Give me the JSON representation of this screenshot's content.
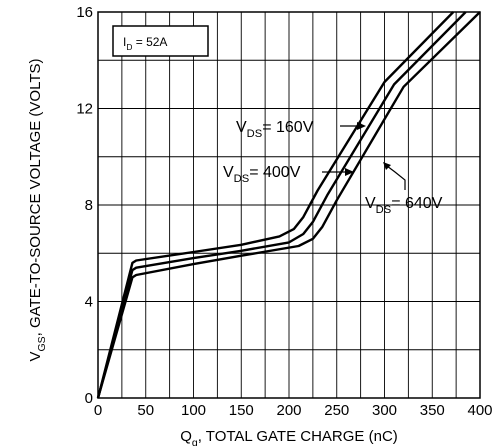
{
  "chart_data": {
    "type": "line",
    "xlabel": "Q",
    "xlabel_sub": "g",
    "xlabel_rest": ", TOTAL GATE CHARGE (nC)",
    "ylabel": "V",
    "ylabel_sub": "GS",
    "ylabel_rest": ", GATE-TO-SOURCE VOLTAGE (VOLTS)",
    "xlim": [
      0,
      400
    ],
    "ylim": [
      0,
      16
    ],
    "xticks": [
      0,
      50,
      100,
      150,
      200,
      250,
      300,
      350,
      400
    ],
    "yticks": [
      0,
      4,
      8,
      12,
      16
    ],
    "grid": "on",
    "condition_label": {
      "base": "I",
      "sub": "D",
      "rest": " = 52A"
    },
    "series": [
      {
        "name": "VDS = 160V",
        "label_base": "V",
        "label_sub": "DS",
        "label_rest": "= 160V",
        "points": [
          [
            0,
            0
          ],
          [
            36,
            5.6
          ],
          [
            40,
            5.7
          ],
          [
            100,
            6.05
          ],
          [
            150,
            6.35
          ],
          [
            190,
            6.7
          ],
          [
            205,
            7.0
          ],
          [
            215,
            7.5
          ],
          [
            230,
            8.6
          ],
          [
            300,
            13.1
          ],
          [
            372,
            16
          ]
        ]
      },
      {
        "name": "VDS = 400V",
        "label_base": "V",
        "label_sub": "DS",
        "label_rest": "= 400V",
        "points": [
          [
            0,
            0
          ],
          [
            36,
            5.3
          ],
          [
            40,
            5.4
          ],
          [
            100,
            5.8
          ],
          [
            150,
            6.1
          ],
          [
            200,
            6.45
          ],
          [
            215,
            6.8
          ],
          [
            225,
            7.3
          ],
          [
            240,
            8.4
          ],
          [
            310,
            13.0
          ],
          [
            385,
            16
          ]
        ]
      },
      {
        "name": "VDS = 640V",
        "label_base": "V",
        "label_sub": "DS",
        "label_rest": "= 640V",
        "points": [
          [
            0,
            0
          ],
          [
            36,
            5.0
          ],
          [
            40,
            5.1
          ],
          [
            100,
            5.55
          ],
          [
            150,
            5.9
          ],
          [
            210,
            6.3
          ],
          [
            225,
            6.6
          ],
          [
            235,
            7.1
          ],
          [
            250,
            8.2
          ],
          [
            320,
            12.9
          ],
          [
            400,
            16
          ]
        ]
      }
    ]
  }
}
